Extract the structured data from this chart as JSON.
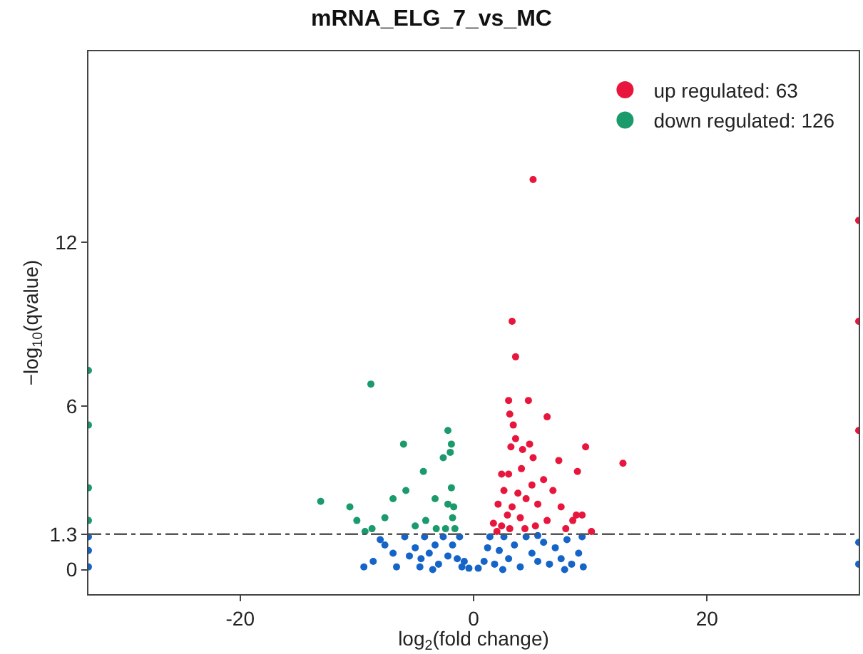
{
  "chart_data": {
    "type": "scatter",
    "title": "mRNA_ELG_7_vs_MC",
    "xlabel": "log$_{2}$(fold change)",
    "ylabel": "−log$_{10}$(qvalue)",
    "xlim": [
      -33,
      33
    ],
    "xticks": [
      -20,
      0,
      20
    ],
    "ylim": [
      -0.9,
      19
    ],
    "yticks": [
      0,
      1.3,
      6,
      12
    ],
    "grid": false,
    "legend": "top right",
    "marker": "circle",
    "ref_lines": [
      {
        "axis": "y",
        "value": 1.3,
        "line_style": "dashed",
        "color": "#555555"
      }
    ],
    "series": [
      {
        "name": "up regulated: 63",
        "color": "#e8163c",
        "x": [
          5.1,
          3.3,
          3.6,
          3.0,
          4.7,
          6.3,
          3.1,
          3.4,
          3.6,
          3.2,
          4.2,
          4.8,
          5.1,
          7.3,
          9.6,
          12.8,
          8.9,
          3.0,
          2.4,
          4.1,
          6.0,
          5.0,
          2.6,
          3.8,
          6.8,
          4.5,
          2.1,
          3.3,
          5.5,
          7.5,
          8.8,
          9.3,
          2.9,
          4.0,
          6.3,
          1.7,
          2.4,
          3.1,
          4.4,
          5.3,
          7.9,
          10.1,
          2.0,
          8.5,
          33,
          33,
          33
        ],
        "values": [
          14.3,
          9.1,
          7.8,
          6.2,
          6.2,
          5.6,
          5.7,
          5.3,
          4.8,
          4.5,
          4.4,
          4.6,
          4.1,
          4.0,
          4.5,
          3.9,
          3.6,
          3.5,
          3.5,
          3.7,
          3.3,
          3.1,
          2.9,
          2.8,
          2.9,
          2.6,
          2.4,
          2.3,
          2.4,
          2.3,
          2.0,
          2.0,
          2.0,
          1.9,
          1.8,
          1.7,
          1.6,
          1.5,
          1.5,
          1.6,
          1.5,
          1.4,
          1.4,
          1.8,
          12.8,
          9.1,
          5.1
        ]
      },
      {
        "name": "down regulated: 126",
        "color": "#1b9a6b",
        "x": [
          -8.8,
          -6.0,
          -2.2,
          -1.9,
          -2.0,
          -2.6,
          -4.3,
          -1.9,
          -5.8,
          -6.9,
          -13.1,
          -10.6,
          -3.3,
          -2.2,
          -1.7,
          -10.0,
          -7.6,
          -5.0,
          -4.1,
          -3.2,
          -1.8,
          -1.6,
          -2.4,
          -8.7,
          -9.3,
          -33,
          -33,
          -33,
          -33
        ],
        "values": [
          6.8,
          4.6,
          5.1,
          4.6,
          4.3,
          4.1,
          3.6,
          3.0,
          2.9,
          2.6,
          2.5,
          2.3,
          2.6,
          2.4,
          2.3,
          1.8,
          1.9,
          1.6,
          1.8,
          1.5,
          1.9,
          1.5,
          1.5,
          1.5,
          1.4,
          7.3,
          5.3,
          3.0,
          1.8
        ]
      },
      {
        "color": "#1565c8",
        "x": [
          -9.4,
          -8.6,
          -8.0,
          -7.6,
          -6.9,
          -6.6,
          -5.9,
          -5.5,
          -5.0,
          -4.6,
          -4.2,
          -3.8,
          -3.3,
          -3.0,
          -2.6,
          -2.2,
          -1.8,
          -1.4,
          -1.0,
          -0.8,
          -1.2,
          -0.4,
          0.4,
          0.9,
          1.2,
          1.4,
          1.8,
          2.2,
          2.6,
          3.0,
          3.5,
          4.0,
          4.5,
          5.0,
          5.5,
          6.0,
          6.5,
          7.0,
          7.5,
          8.0,
          8.4,
          9.0,
          9.4,
          9.3,
          -3.5,
          2.5,
          5.5,
          -4.5,
          7.8,
          -33,
          -33,
          -33,
          33,
          33
        ],
        "values": [
          0.1,
          0.3,
          1.1,
          0.9,
          0.6,
          0.1,
          1.2,
          0.5,
          0.8,
          0.1,
          1.2,
          0.6,
          0.9,
          0.2,
          1.2,
          0.5,
          0.9,
          0.4,
          0.1,
          0.3,
          1.2,
          0.05,
          0.05,
          0.3,
          0.8,
          1.2,
          0.2,
          0.7,
          1.2,
          0.4,
          0.9,
          0.1,
          1.2,
          0.6,
          0.3,
          1.0,
          0.2,
          0.8,
          0.4,
          1.1,
          0.2,
          0.6,
          0.1,
          1.2,
          0.0,
          0.0,
          1.25,
          0.4,
          0.0,
          0.1,
          0.7,
          1.2,
          0.2,
          1.0
        ]
      }
    ]
  }
}
